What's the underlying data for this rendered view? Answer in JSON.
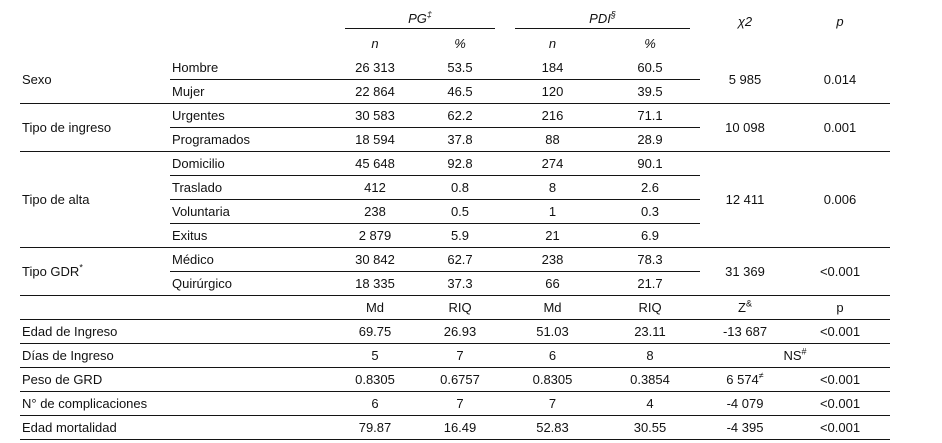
{
  "table": {
    "column_groups": [
      {
        "label": "PG",
        "sup": "‡",
        "subheaders": [
          "n",
          "%"
        ]
      },
      {
        "label": "PDI",
        "sup": "§",
        "subheaders": [
          "n",
          "%"
        ]
      }
    ],
    "chi2_header": "χ2",
    "p_header": "p",
    "categorical_groups": [
      {
        "group": "Sexo",
        "sup": "",
        "rows": [
          {
            "category": "Hombre",
            "values": [
              "26 313",
              "53.5",
              "184",
              "60.5"
            ]
          },
          {
            "category": "Mujer",
            "values": [
              "22 864",
              "46.5",
              "120",
              "39.5"
            ]
          }
        ],
        "chi2": "5 985",
        "p": "0.014"
      },
      {
        "group": "Tipo de ingreso",
        "sup": "",
        "rows": [
          {
            "category": "Urgentes",
            "values": [
              "30 583",
              "62.2",
              "216",
              "71.1"
            ]
          },
          {
            "category": "Programados",
            "values": [
              "18 594",
              "37.8",
              "88",
              "28.9"
            ]
          }
        ],
        "chi2": "10 098",
        "p": "0.001"
      },
      {
        "group": "Tipo de alta",
        "sup": "",
        "rows": [
          {
            "category": "Domicilio",
            "values": [
              "45 648",
              "92.8",
              "274",
              "90.1"
            ]
          },
          {
            "category": "Traslado",
            "values": [
              "412",
              "0.8",
              "8",
              "2.6"
            ]
          },
          {
            "category": "Voluntaria",
            "values": [
              "238",
              "0.5",
              "1",
              "0.3"
            ]
          },
          {
            "category": "Exitus",
            "values": [
              "2 879",
              "5.9",
              "21",
              "6.9"
            ]
          }
        ],
        "chi2": "12 411",
        "p": "0.006"
      },
      {
        "group": "Tipo GDR",
        "sup": "*",
        "rows": [
          {
            "category": "Médico",
            "values": [
              "30 842",
              "62.7",
              "238",
              "78.3"
            ]
          },
          {
            "category": "Quirúrgico",
            "values": [
              "18 335",
              "37.3",
              "66",
              "21.7"
            ]
          }
        ],
        "chi2": "31 369",
        "p": "<0.001"
      }
    ],
    "continuous_subheader": {
      "stats": [
        "Md",
        "RIQ",
        "Md",
        "RIQ"
      ],
      "z_label": "Z",
      "z_sup": "&",
      "p_label": "p"
    },
    "continuous_rows": [
      {
        "label": "Edad de Ingreso",
        "values": [
          "69.75",
          "26.93",
          "51.03",
          "23.11"
        ],
        "z": "-13 687",
        "z_sup": "",
        "p": "<0.001",
        "z_span": 1
      },
      {
        "label": "Días de Ingreso",
        "values": [
          "5",
          "7",
          "6",
          "8"
        ],
        "z": "NS",
        "z_sup": "#",
        "p": "",
        "z_span": 2
      },
      {
        "label": "Peso de GRD",
        "values": [
          "0.8305",
          "0.6757",
          "0.8305",
          "0.3854"
        ],
        "z": "6 574",
        "z_sup": "≠",
        "p": "<0.001",
        "z_span": 1
      },
      {
        "label": "N° de complicaciones",
        "values": [
          "6",
          "7",
          "7",
          "4"
        ],
        "z": "-4 079",
        "z_sup": "",
        "p": "<0.001",
        "z_span": 1
      },
      {
        "label": "Edad mortalidad",
        "values": [
          "79.87",
          "16.49",
          "52.83",
          "30.55"
        ],
        "z": "-4 395",
        "z_sup": "",
        "p": "<0.001",
        "z_span": 1
      }
    ]
  }
}
